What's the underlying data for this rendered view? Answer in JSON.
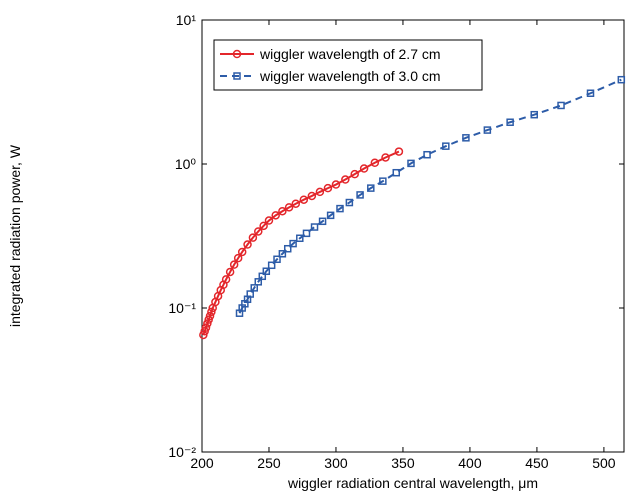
{
  "chart_data": {
    "type": "line",
    "xlabel": "wiggler radiation central wavelength, μm",
    "ylabel": "integrated radiation power, W",
    "xlim": [
      200,
      515
    ],
    "xticks": [
      200,
      250,
      300,
      350,
      400,
      450,
      500
    ],
    "ylim": [
      0.01,
      10
    ],
    "yticks": [
      {
        "value": 0.01,
        "label": "10⁻²"
      },
      {
        "value": 0.1,
        "label": "10⁻¹"
      },
      {
        "value": 1,
        "label": "10⁰"
      },
      {
        "value": 10,
        "label": "10¹"
      }
    ],
    "log_y": true,
    "grid": false,
    "legend": "upper left",
    "series": [
      {
        "name": "wiggler wavelength of 2.7 cm",
        "color": "#e3262b",
        "marker": "circle",
        "dash": false,
        "x": [
          201,
          202,
          203,
          204,
          205,
          206,
          207,
          208,
          210,
          212,
          214,
          216,
          218,
          221,
          224,
          227,
          230,
          234,
          238,
          242,
          246,
          250,
          255,
          260,
          265,
          270,
          276,
          282,
          288,
          294,
          300,
          307,
          314,
          321,
          329,
          337,
          347
        ],
        "values": [
          0.065,
          0.069,
          0.073,
          0.078,
          0.083,
          0.088,
          0.094,
          0.1,
          0.11,
          0.121,
          0.133,
          0.145,
          0.158,
          0.178,
          0.2,
          0.222,
          0.245,
          0.276,
          0.308,
          0.34,
          0.372,
          0.405,
          0.44,
          0.47,
          0.5,
          0.53,
          0.565,
          0.6,
          0.64,
          0.68,
          0.72,
          0.78,
          0.85,
          0.93,
          1.02,
          1.11,
          1.22
        ]
      },
      {
        "name": "wiggler wavelength of 3.0 cm",
        "color": "#2d5ca8",
        "marker": "square",
        "dash": true,
        "x": [
          228,
          230,
          232,
          234,
          236,
          239,
          242,
          245,
          248,
          252,
          256,
          260,
          264,
          268,
          273,
          278,
          284,
          290,
          296,
          303,
          310,
          318,
          326,
          335,
          345,
          356,
          368,
          382,
          397,
          413,
          430,
          448,
          468,
          490,
          513
        ],
        "values": [
          0.092,
          0.1,
          0.107,
          0.115,
          0.125,
          0.138,
          0.152,
          0.166,
          0.18,
          0.198,
          0.218,
          0.238,
          0.258,
          0.28,
          0.305,
          0.33,
          0.365,
          0.4,
          0.44,
          0.49,
          0.54,
          0.61,
          0.68,
          0.76,
          0.87,
          1.01,
          1.16,
          1.33,
          1.52,
          1.72,
          1.95,
          2.2,
          2.55,
          3.1,
          3.85
        ]
      }
    ]
  }
}
